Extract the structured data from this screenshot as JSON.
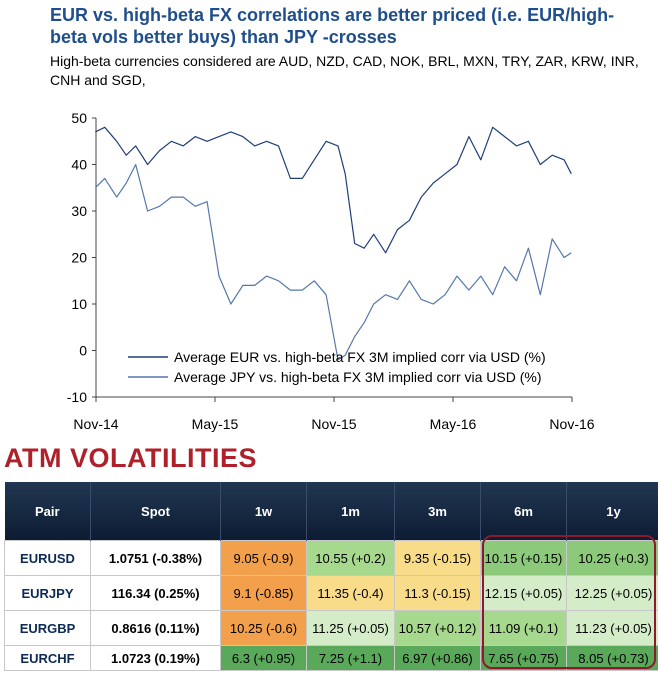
{
  "title": "EUR vs. high-beta FX correlations are better priced (i.e. EUR/high-beta vols better buys) than JPY -crosses",
  "subtitle": "High-beta currencies considered are AUD, NZD, CAD, NOK, BRL, MXN, TRY, ZAR, KRW, INR, CNH and SGD,",
  "chart_data": {
    "type": "line",
    "title": "",
    "xlabel": "",
    "ylabel": "",
    "ylim": [
      -10,
      50
    ],
    "yticks": [
      50,
      40,
      30,
      20,
      10,
      0,
      -10
    ],
    "xticks": [
      "Nov-14",
      "May-15",
      "Nov-15",
      "May-16",
      "Nov-16"
    ],
    "x_range": [
      2014.833,
      2016.833
    ],
    "grid": false,
    "legend": "bottom-center",
    "series": [
      {
        "name": "Average EUR vs. high-beta FX 3M implied corr via USD (%)",
        "color": "#1f3f78",
        "x": [
          2014.83,
          2014.87,
          2014.92,
          2014.96,
          2015.0,
          2015.05,
          2015.1,
          2015.15,
          2015.2,
          2015.25,
          2015.3,
          2015.35,
          2015.4,
          2015.45,
          2015.5,
          2015.55,
          2015.6,
          2015.65,
          2015.7,
          2015.75,
          2015.8,
          2015.85,
          2015.88,
          2015.92,
          2015.96,
          2016.0,
          2016.05,
          2016.1,
          2016.15,
          2016.2,
          2016.25,
          2016.3,
          2016.35,
          2016.4,
          2016.45,
          2016.5,
          2016.55,
          2016.6,
          2016.65,
          2016.7,
          2016.75,
          2016.8,
          2016.83
        ],
        "y": [
          47,
          48,
          45,
          42,
          44,
          40,
          43,
          45,
          44,
          46,
          45,
          46,
          47,
          46,
          44,
          45,
          44,
          37,
          37,
          41,
          45,
          44,
          38,
          23,
          22,
          25,
          21,
          26,
          28,
          33,
          36,
          38,
          40,
          46,
          41,
          48,
          46,
          44,
          45,
          40,
          42,
          41,
          38
        ]
      },
      {
        "name": "Average JPY vs. high-beta FX 3M implied corr via USD (%)",
        "color": "#5577aa",
        "x": [
          2014.83,
          2014.87,
          2014.92,
          2014.96,
          2015.0,
          2015.05,
          2015.1,
          2015.15,
          2015.2,
          2015.25,
          2015.3,
          2015.35,
          2015.4,
          2015.45,
          2015.5,
          2015.55,
          2015.6,
          2015.65,
          2015.7,
          2015.75,
          2015.8,
          2015.85,
          2015.88,
          2015.92,
          2015.96,
          2016.0,
          2016.05,
          2016.1,
          2016.15,
          2016.2,
          2016.25,
          2016.3,
          2016.35,
          2016.4,
          2016.45,
          2016.5,
          2016.55,
          2016.6,
          2016.65,
          2016.7,
          2016.75,
          2016.8,
          2016.83
        ],
        "y": [
          35,
          37,
          33,
          36,
          40,
          30,
          31,
          33,
          33,
          31,
          32,
          16,
          10,
          14,
          14,
          16,
          15,
          13,
          13,
          15,
          12,
          -2,
          -1,
          3,
          6,
          10,
          12,
          11,
          15,
          11,
          10,
          12,
          16,
          13,
          16,
          12,
          18,
          15,
          22,
          12,
          24,
          20,
          21
        ]
      }
    ]
  },
  "section_title": "ATM VOLATILITIES",
  "table": {
    "headers": [
      "Pair",
      "Spot",
      "1w",
      "1m",
      "3m",
      "6m",
      "1y"
    ],
    "rows": [
      {
        "cells": [
          "EURUSD",
          "1.0751 (-0.38%)",
          "9.05 (-0.9)",
          "10.55 (+0.2)",
          "9.35 (-0.15)",
          "10.15 (+0.15)",
          "10.25 (+0.3)"
        ],
        "colors": [
          "",
          "",
          "orange",
          "lgreen",
          "yellow",
          "mgreen",
          "mgreen"
        ]
      },
      {
        "cells": [
          "EURJPY",
          "116.34 (0.25%)",
          "9.1 (-0.85)",
          "11.35 (-0.4)",
          "11.3 (-0.15)",
          "12.15 (+0.05)",
          "12.25 (+0.05)"
        ],
        "colors": [
          "",
          "",
          "orange",
          "yellow",
          "yellow",
          "pale",
          "pale"
        ]
      },
      {
        "cells": [
          "EURGBP",
          "0.8616 (0.11%)",
          "10.25 (-0.6)",
          "11.25 (+0.05)",
          "10.57 (+0.12)",
          "11.09 (+0.1)",
          "11.23 (+0.05)"
        ],
        "colors": [
          "",
          "",
          "orange",
          "pale",
          "lgreen",
          "lgreen",
          "pale"
        ]
      },
      {
        "cells": [
          "EURCHF",
          "1.0723 (0.19%)",
          "6.3 (+0.95)",
          "7.25 (+1.1)",
          "6.97 (+0.86)",
          "7.65 (+0.75)",
          "8.05 (+0.73)"
        ],
        "colors": [
          "",
          "",
          "dgreen",
          "dgreen",
          "dgreen",
          "dgreen",
          "dgreen"
        ]
      }
    ]
  }
}
